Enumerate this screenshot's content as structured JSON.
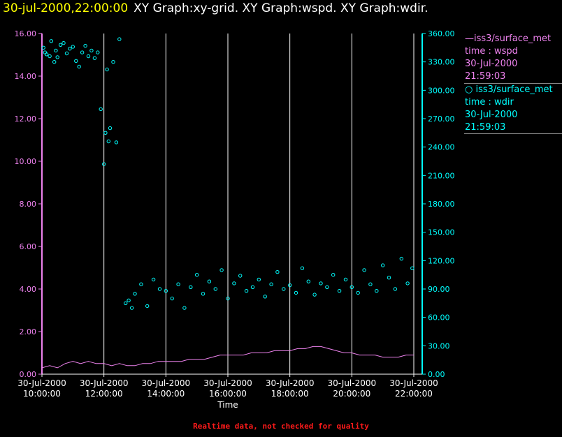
{
  "header": {
    "time": "30-jul-2000,22:00:00",
    "title": "XY Graph:xy-grid.  XY Graph:wspd.  XY Graph:wdir."
  },
  "legend": [
    {
      "marker": "line",
      "name": "iss3/surface_met",
      "field": "time : wspd",
      "date": "30-Jul-2000",
      "time": "21:59:03",
      "color": "#ee82ee"
    },
    {
      "marker": "circle",
      "name": "iss3/surface_met",
      "field": "time : wdir",
      "date": "30-Jul-2000",
      "time": "21:59:03",
      "color": "#00ffff"
    }
  ],
  "footer": "Realtime data, not checked for quality",
  "chart_data": {
    "type": "line",
    "xlabel": "Time",
    "x_range_hours": [
      10,
      22
    ],
    "x_ticks": [
      {
        "date": "30-Jul-2000",
        "time": "10:00:00"
      },
      {
        "date": "30-Jul-2000",
        "time": "12:00:00"
      },
      {
        "date": "30-Jul-2000",
        "time": "14:00:00"
      },
      {
        "date": "30-Jul-2000",
        "time": "16:00:00"
      },
      {
        "date": "30-Jul-2000",
        "time": "18:00:00"
      },
      {
        "date": "30-Jul-2000",
        "time": "20:00:00"
      },
      {
        "date": "30-Jul-2000",
        "time": "22:00:00"
      }
    ],
    "y_left": {
      "range": [
        0,
        16
      ],
      "ticks": [
        "0.00",
        "2.00",
        "4.00",
        "6.00",
        "8.00",
        "10.00",
        "12.00",
        "14.00",
        "16.00"
      ],
      "color": "#ee82ee"
    },
    "y_right": {
      "range": [
        0,
        360
      ],
      "ticks": [
        "0.00",
        "30.00",
        "60.00",
        "90.00",
        "120.00",
        "150.00",
        "180.00",
        "210.00",
        "240.00",
        "270.00",
        "300.00",
        "330.00",
        "360.00"
      ],
      "color": "#00ffff"
    },
    "grid": "vertical",
    "series": [
      {
        "name": "iss3/surface_met time : wspd",
        "axis": "left",
        "style": "line",
        "color": "#ee82ee",
        "x_hours": [
          10.0,
          10.25,
          10.5,
          10.75,
          11.0,
          11.25,
          11.5,
          11.75,
          12.0,
          12.25,
          12.5,
          12.75,
          13.0,
          13.25,
          13.5,
          13.75,
          14.0,
          14.25,
          14.5,
          14.75,
          15.0,
          15.25,
          15.5,
          15.75,
          16.0,
          16.25,
          16.5,
          16.75,
          17.0,
          17.25,
          17.5,
          17.75,
          18.0,
          18.25,
          18.5,
          18.75,
          19.0,
          19.25,
          19.5,
          19.75,
          20.0,
          20.25,
          20.5,
          20.75,
          21.0,
          21.25,
          21.5,
          21.75,
          22.0
        ],
        "y": [
          0.3,
          0.4,
          0.3,
          0.5,
          0.6,
          0.5,
          0.6,
          0.5,
          0.5,
          0.4,
          0.5,
          0.4,
          0.4,
          0.5,
          0.5,
          0.6,
          0.6,
          0.6,
          0.6,
          0.7,
          0.7,
          0.7,
          0.8,
          0.9,
          0.9,
          0.9,
          0.9,
          1.0,
          1.0,
          1.0,
          1.1,
          1.1,
          1.1,
          1.2,
          1.2,
          1.3,
          1.3,
          1.2,
          1.1,
          1.0,
          1.0,
          0.9,
          0.9,
          0.9,
          0.8,
          0.8,
          0.8,
          0.9,
          0.9
        ]
      },
      {
        "name": "iss3/surface_met time : wdir",
        "axis": "right",
        "style": "circle",
        "color": "#00ffff",
        "x_hours": [
          10.05,
          10.1,
          10.15,
          10.25,
          10.3,
          10.4,
          10.45,
          10.5,
          10.6,
          10.7,
          10.8,
          10.9,
          11.0,
          11.1,
          11.2,
          11.3,
          11.4,
          11.5,
          11.6,
          11.7,
          11.8,
          11.9,
          12.0,
          12.05,
          12.1,
          12.15,
          12.2,
          12.3,
          12.4,
          12.5,
          12.7,
          12.8,
          12.9,
          13.0,
          13.2,
          13.4,
          13.6,
          13.8,
          14.0,
          14.2,
          14.4,
          14.6,
          14.8,
          15.0,
          15.2,
          15.4,
          15.6,
          15.8,
          16.0,
          16.2,
          16.4,
          16.6,
          16.8,
          17.0,
          17.2,
          17.4,
          17.6,
          17.8,
          18.0,
          18.2,
          18.4,
          18.6,
          18.8,
          19.0,
          19.2,
          19.4,
          19.6,
          19.8,
          20.0,
          20.2,
          20.4,
          20.6,
          20.8,
          21.0,
          21.2,
          21.4,
          21.6,
          21.8,
          21.95
        ],
        "y": [
          345,
          340,
          338,
          336,
          352,
          330,
          342,
          335,
          348,
          350,
          339,
          344,
          346,
          331,
          325,
          340,
          347,
          336,
          342,
          334,
          340,
          280,
          222,
          255,
          322,
          246,
          260,
          330,
          245,
          354,
          75,
          78,
          70,
          85,
          95,
          72,
          100,
          90,
          88,
          80,
          95,
          70,
          92,
          105,
          85,
          98,
          90,
          110,
          80,
          96,
          104,
          88,
          92,
          100,
          82,
          95,
          108,
          90,
          94,
          86,
          112,
          98,
          84,
          96,
          92,
          105,
          88,
          100,
          92,
          86,
          110,
          95,
          88,
          115,
          102,
          90,
          122,
          96,
          112
        ]
      }
    ]
  }
}
